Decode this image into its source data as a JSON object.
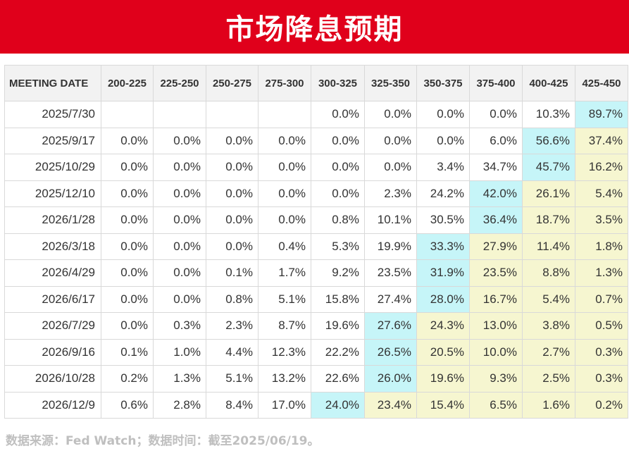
{
  "header": {
    "title": "市场降息预期"
  },
  "colors": {
    "header_bg": "#e0001b",
    "max_cell": "#c6f5f8",
    "above_cell": "#f6f6d0"
  },
  "chart_data": {
    "type": "table",
    "columns": [
      "MEETING DATE",
      "200-225",
      "225-250",
      "250-275",
      "275-300",
      "300-325",
      "325-350",
      "350-375",
      "375-400",
      "400-425",
      "425-450"
    ],
    "rows": [
      {
        "date": "2025/7/30",
        "values": [
          "",
          "",
          "",
          "",
          "0.0%",
          "0.0%",
          "0.0%",
          "0.0%",
          "10.3%",
          "89.7%"
        ],
        "max_index": 9
      },
      {
        "date": "2025/9/17",
        "values": [
          "0.0%",
          "0.0%",
          "0.0%",
          "0.0%",
          "0.0%",
          "0.0%",
          "0.0%",
          "6.0%",
          "56.6%",
          "37.4%"
        ],
        "max_index": 8
      },
      {
        "date": "2025/10/29",
        "values": [
          "0.0%",
          "0.0%",
          "0.0%",
          "0.0%",
          "0.0%",
          "0.0%",
          "3.4%",
          "34.7%",
          "45.7%",
          "16.2%"
        ],
        "max_index": 8
      },
      {
        "date": "2025/12/10",
        "values": [
          "0.0%",
          "0.0%",
          "0.0%",
          "0.0%",
          "0.0%",
          "2.3%",
          "24.2%",
          "42.0%",
          "26.1%",
          "5.4%"
        ],
        "max_index": 7
      },
      {
        "date": "2026/1/28",
        "values": [
          "0.0%",
          "0.0%",
          "0.0%",
          "0.0%",
          "0.8%",
          "10.1%",
          "30.5%",
          "36.4%",
          "18.7%",
          "3.5%"
        ],
        "max_index": 7
      },
      {
        "date": "2026/3/18",
        "values": [
          "0.0%",
          "0.0%",
          "0.0%",
          "0.4%",
          "5.3%",
          "19.9%",
          "33.3%",
          "27.9%",
          "11.4%",
          "1.8%"
        ],
        "max_index": 6
      },
      {
        "date": "2026/4/29",
        "values": [
          "0.0%",
          "0.0%",
          "0.1%",
          "1.7%",
          "9.2%",
          "23.5%",
          "31.9%",
          "23.5%",
          "8.8%",
          "1.3%"
        ],
        "max_index": 6
      },
      {
        "date": "2026/6/17",
        "values": [
          "0.0%",
          "0.0%",
          "0.8%",
          "5.1%",
          "15.8%",
          "27.4%",
          "28.0%",
          "16.7%",
          "5.4%",
          "0.7%"
        ],
        "max_index": 6
      },
      {
        "date": "2026/7/29",
        "values": [
          "0.0%",
          "0.3%",
          "2.3%",
          "8.7%",
          "19.6%",
          "27.6%",
          "24.3%",
          "13.0%",
          "3.8%",
          "0.5%"
        ],
        "max_index": 5
      },
      {
        "date": "2026/9/16",
        "values": [
          "0.1%",
          "1.0%",
          "4.4%",
          "12.3%",
          "22.2%",
          "26.5%",
          "20.5%",
          "10.0%",
          "2.7%",
          "0.3%"
        ],
        "max_index": 5
      },
      {
        "date": "2026/10/28",
        "values": [
          "0.2%",
          "1.3%",
          "5.1%",
          "13.2%",
          "22.6%",
          "26.0%",
          "19.6%",
          "9.3%",
          "2.5%",
          "0.3%"
        ],
        "max_index": 5
      },
      {
        "date": "2026/12/9",
        "values": [
          "0.6%",
          "2.8%",
          "8.4%",
          "17.0%",
          "24.0%",
          "23.4%",
          "15.4%",
          "6.5%",
          "1.6%",
          "0.2%"
        ],
        "max_index": 4
      }
    ]
  },
  "footer": {
    "source": "数据来源：Fed Watch；数据时间：截至2025/06/19。"
  }
}
